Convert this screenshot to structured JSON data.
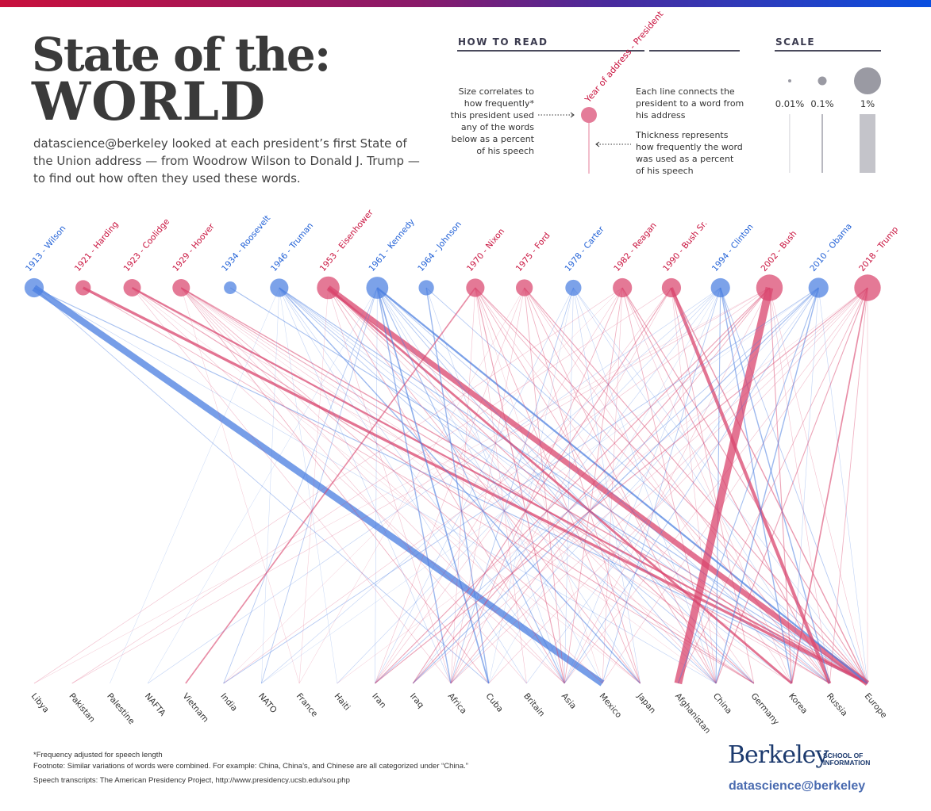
{
  "header": {
    "title_line1": "State of the:",
    "title_line2": "WORLD",
    "intro": "datascience@berkeley looked at each president’s first State of the Union address — from Woodrow Wilson to Donald J. Trump — to find out how often they used these words."
  },
  "how_to_read": {
    "heading": "HOW TO READ",
    "node_label": "Year of address - President",
    "size_note": [
      "Size correlates to",
      "how frequently*",
      "this president used",
      "any of the words",
      "below as a percent",
      "of his speech"
    ],
    "line_note": [
      "Each line connects the",
      "president to a word from",
      "his address"
    ],
    "thickness_note": [
      "Thickness represents",
      "how frequently the word",
      "was used as a percent",
      "of his speech"
    ]
  },
  "scale": {
    "heading": "SCALE",
    "items": [
      {
        "label": "0.01%",
        "value": 0.01
      },
      {
        "label": "0.1%",
        "value": 0.1
      },
      {
        "label": "1%",
        "value": 1
      }
    ]
  },
  "colors": {
    "republican": "#d9456e",
    "democrat": "#4a7ee0",
    "republican_text": "#c8103c",
    "democrat_text": "#1f5fd6",
    "scale_gray": "#9a9aa3"
  },
  "chart_data": {
    "type": "network",
    "title": "State of the: WORLD",
    "presidents": [
      {
        "label": "1913 - Wilson",
        "party": "D",
        "size_pct": 0.35
      },
      {
        "label": "1921 - Harding",
        "party": "R",
        "size_pct": 0.15
      },
      {
        "label": "1923 - Coolidge",
        "party": "R",
        "size_pct": 0.25
      },
      {
        "label": "1929 - Hoover",
        "party": "R",
        "size_pct": 0.25
      },
      {
        "label": "1934 - Roosevelt",
        "party": "D",
        "size_pct": 0.06
      },
      {
        "label": "1946 - Truman",
        "party": "D",
        "size_pct": 0.3
      },
      {
        "label": "1953 - Eisenhower",
        "party": "R",
        "size_pct": 0.6
      },
      {
        "label": "1961 - Kennedy",
        "party": "D",
        "size_pct": 0.55
      },
      {
        "label": "1964 - Johnson",
        "party": "D",
        "size_pct": 0.15
      },
      {
        "label": "1970 - Nixon",
        "party": "R",
        "size_pct": 0.3
      },
      {
        "label": "1975 - Ford",
        "party": "R",
        "size_pct": 0.22
      },
      {
        "label": "1978 - Carter",
        "party": "D",
        "size_pct": 0.18
      },
      {
        "label": "1982 - Reagan",
        "party": "R",
        "size_pct": 0.35
      },
      {
        "label": "1990 - Bush Sr.",
        "party": "R",
        "size_pct": 0.35
      },
      {
        "label": "1994 - Clinton",
        "party": "D",
        "size_pct": 0.35
      },
      {
        "label": "2002 - Bush",
        "party": "R",
        "size_pct": 0.95
      },
      {
        "label": "2010 - Obama",
        "party": "D",
        "size_pct": 0.4
      },
      {
        "label": "2018 - Trump",
        "party": "R",
        "size_pct": 0.95
      }
    ],
    "words": [
      "Libya",
      "Pakistan",
      "Palestine",
      "NAFTA",
      "Vietnam",
      "India",
      "NATO",
      "France",
      "Haiti",
      "Iran",
      "Iraq",
      "Africa",
      "Cuba",
      "Britain",
      "Asia",
      "Mexico",
      "Japan",
      "Afghanistan",
      "China",
      "Germany",
      "Korea",
      "Russia",
      "Europe"
    ],
    "edges": [
      [
        0,
        15,
        0.3
      ],
      [
        0,
        22,
        0.04
      ],
      [
        0,
        12,
        0.03
      ],
      [
        0,
        18,
        0.02
      ],
      [
        1,
        22,
        0.12
      ],
      [
        1,
        19,
        0.03
      ],
      [
        2,
        22,
        0.08
      ],
      [
        2,
        11,
        0.02
      ],
      [
        2,
        19,
        0.04
      ],
      [
        2,
        14,
        0.02
      ],
      [
        2,
        21,
        0.02
      ],
      [
        2,
        16,
        0.01
      ],
      [
        3,
        21,
        0.04
      ],
      [
        3,
        20,
        0.02
      ],
      [
        3,
        14,
        0.02
      ],
      [
        3,
        12,
        0.03
      ],
      [
        3,
        16,
        0.03
      ],
      [
        3,
        15,
        0.02
      ],
      [
        3,
        22,
        0.05
      ],
      [
        3,
        19,
        0.02
      ],
      [
        3,
        13,
        0.02
      ],
      [
        3,
        18,
        0.01
      ],
      [
        3,
        7,
        0.01
      ],
      [
        4,
        22,
        0.04
      ],
      [
        5,
        22,
        0.04
      ],
      [
        5,
        19,
        0.03
      ],
      [
        5,
        21,
        0.03
      ],
      [
        5,
        16,
        0.05
      ],
      [
        5,
        18,
        0.03
      ],
      [
        5,
        20,
        0.02
      ],
      [
        5,
        11,
        0.02
      ],
      [
        5,
        14,
        0.02
      ],
      [
        5,
        8,
        0.01
      ],
      [
        5,
        13,
        0.02
      ],
      [
        5,
        6,
        0.01
      ],
      [
        5,
        2,
        0.01
      ],
      [
        6,
        22,
        0.25
      ],
      [
        6,
        20,
        0.1
      ],
      [
        6,
        14,
        0.03
      ],
      [
        6,
        19,
        0.04
      ],
      [
        6,
        16,
        0.03
      ],
      [
        6,
        21,
        0.03
      ],
      [
        6,
        11,
        0.02
      ],
      [
        6,
        18,
        0.02
      ],
      [
        6,
        7,
        0.01
      ],
      [
        7,
        22,
        0.08
      ],
      [
        7,
        11,
        0.05
      ],
      [
        7,
        14,
        0.04
      ],
      [
        7,
        12,
        0.06
      ],
      [
        7,
        18,
        0.03
      ],
      [
        7,
        5,
        0.03
      ],
      [
        7,
        6,
        0.03
      ],
      [
        7,
        3,
        0.01
      ],
      [
        7,
        15,
        0.02
      ],
      [
        7,
        19,
        0.03
      ],
      [
        7,
        21,
        0.03
      ],
      [
        7,
        16,
        0.02
      ],
      [
        7,
        9,
        0.02
      ],
      [
        8,
        12,
        0.05
      ],
      [
        8,
        22,
        0.03
      ],
      [
        8,
        14,
        0.02
      ],
      [
        9,
        4,
        0.06
      ],
      [
        9,
        22,
        0.04
      ],
      [
        9,
        14,
        0.04
      ],
      [
        9,
        18,
        0.03
      ],
      [
        9,
        16,
        0.03
      ],
      [
        9,
        21,
        0.03
      ],
      [
        9,
        11,
        0.02
      ],
      [
        9,
        13,
        0.02
      ],
      [
        9,
        19,
        0.02
      ],
      [
        9,
        15,
        0.01
      ],
      [
        10,
        14,
        0.03
      ],
      [
        10,
        22,
        0.04
      ],
      [
        10,
        16,
        0.03
      ],
      [
        10,
        18,
        0.03
      ],
      [
        10,
        11,
        0.02
      ],
      [
        10,
        21,
        0.03
      ],
      [
        10,
        20,
        0.02
      ],
      [
        10,
        7,
        0.01
      ],
      [
        10,
        9,
        0.02
      ],
      [
        11,
        11,
        0.03
      ],
      [
        11,
        14,
        0.02
      ],
      [
        11,
        18,
        0.02
      ],
      [
        11,
        22,
        0.02
      ],
      [
        11,
        21,
        0.02
      ],
      [
        11,
        16,
        0.02
      ],
      [
        11,
        12,
        0.01
      ],
      [
        11,
        9,
        0.02
      ],
      [
        12,
        22,
        0.04
      ],
      [
        12,
        11,
        0.03
      ],
      [
        12,
        21,
        0.04
      ],
      [
        12,
        14,
        0.03
      ],
      [
        12,
        18,
        0.03
      ],
      [
        12,
        15,
        0.02
      ],
      [
        12,
        20,
        0.02
      ],
      [
        12,
        9,
        0.02
      ],
      [
        12,
        5,
        0.01
      ],
      [
        12,
        0,
        0.02
      ],
      [
        13,
        21,
        0.15
      ],
      [
        13,
        22,
        0.05
      ],
      [
        13,
        19,
        0.03
      ],
      [
        13,
        18,
        0.02
      ],
      [
        13,
        10,
        0.04
      ],
      [
        13,
        11,
        0.02
      ],
      [
        13,
        9,
        0.02
      ],
      [
        13,
        1,
        0.02
      ],
      [
        14,
        20,
        0.05
      ],
      [
        14,
        21,
        0.05
      ],
      [
        14,
        18,
        0.04
      ],
      [
        14,
        15,
        0.03
      ],
      [
        14,
        3,
        0.02
      ],
      [
        14,
        22,
        0.03
      ],
      [
        14,
        14,
        0.02
      ],
      [
        14,
        8,
        0.02
      ],
      [
        14,
        6,
        0.02
      ],
      [
        14,
        10,
        0.02
      ],
      [
        14,
        12,
        0.01
      ],
      [
        15,
        17,
        0.35
      ],
      [
        15,
        10,
        0.04
      ],
      [
        15,
        9,
        0.04
      ],
      [
        15,
        20,
        0.04
      ],
      [
        15,
        21,
        0.02
      ],
      [
        15,
        1,
        0.02
      ],
      [
        15,
        5,
        0.02
      ],
      [
        15,
        11,
        0.03
      ],
      [
        15,
        14,
        0.02
      ],
      [
        15,
        22,
        0.02
      ],
      [
        15,
        0,
        0.01
      ],
      [
        16,
        18,
        0.05
      ],
      [
        16,
        17,
        0.04
      ],
      [
        16,
        10,
        0.04
      ],
      [
        16,
        9,
        0.03
      ],
      [
        16,
        5,
        0.03
      ],
      [
        16,
        11,
        0.02
      ],
      [
        16,
        14,
        0.03
      ],
      [
        16,
        22,
        0.02
      ],
      [
        16,
        20,
        0.02
      ],
      [
        16,
        13,
        0.02
      ],
      [
        16,
        6,
        0.01
      ],
      [
        17,
        20,
        0.06
      ],
      [
        17,
        9,
        0.04
      ],
      [
        17,
        18,
        0.04
      ],
      [
        17,
        21,
        0.03
      ],
      [
        17,
        17,
        0.03
      ],
      [
        17,
        11,
        0.02
      ],
      [
        17,
        22,
        0.02
      ],
      [
        17,
        12,
        0.02
      ],
      [
        17,
        14,
        0.02
      ],
      [
        17,
        15,
        0.02
      ],
      [
        17,
        10,
        0.02
      ],
      [
        17,
        8,
        0.01
      ]
    ]
  },
  "footer": {
    "note1": "*Frequency adjusted for speech length",
    "note2": "Footnote: Similar variations of words were combined. For example: China, China’s, and Chinese are all categorized under “China.”",
    "note3": "Speech transcripts: The American Presidency Project, http://www.presidency.ucsb.edu/sou.php"
  },
  "branding": {
    "logo": "Berkeley",
    "school_line1": "SCHOOL OF",
    "school_line2": "INFORMATION",
    "tagline": "datascience@berkeley"
  }
}
